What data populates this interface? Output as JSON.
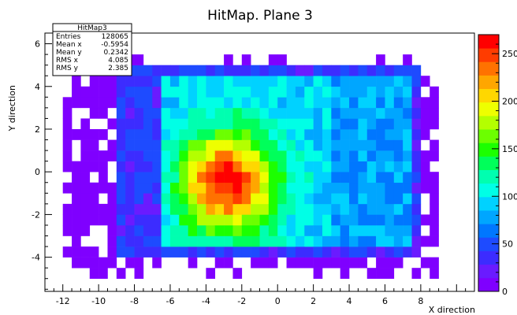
{
  "chart_data": {
    "type": "heatmap",
    "title": "HitMap. Plane 3",
    "xlabel": "X direction",
    "ylabel": "Y direction",
    "xlim": [
      -13,
      11
    ],
    "ylim": [
      -5.6,
      6.5
    ],
    "bin_width_x": 0.5,
    "bin_width_y": 0.5,
    "x_ticks": [
      "-12",
      "-10",
      "-8",
      "-6",
      "-4",
      "-2",
      "0",
      "2",
      "4",
      "6",
      "8"
    ],
    "y_ticks": [
      "-4",
      "-2",
      "0",
      "2",
      "4",
      "6"
    ],
    "z_range": [
      0,
      270
    ],
    "z_ticks": [
      "0",
      "50",
      "100",
      "150",
      "200",
      "250"
    ],
    "colormap": [
      "#7f00ff",
      "#6a1bff",
      "#3c2cff",
      "#1e4bff",
      "#0077ff",
      "#00a6ff",
      "#00d2ff",
      "#00ffe6",
      "#00ffb0",
      "#00ff5a",
      "#1cff00",
      "#6cff00",
      "#b4ff00",
      "#eeff00",
      "#ffd700",
      "#ffa600",
      "#ff7200",
      "#ff3c00",
      "#ff0000"
    ],
    "stats": {
      "name": "HitMap3",
      "rows": [
        {
          "label": "Entries",
          "value": "128065"
        },
        {
          "label": "Mean x",
          "value": "-0.5954"
        },
        {
          "label": "Mean y",
          "value": "0.2342"
        },
        {
          "label": "RMS x",
          "value": "4.085"
        },
        {
          "label": "RMS y",
          "value": "2.385"
        }
      ]
    },
    "distribution": {
      "plateau_x_range": [
        -6.5,
        3
      ],
      "plateau_y_range": [
        -3.5,
        4.5
      ],
      "peak_center": [
        -2.8,
        -0.5
      ],
      "peak_value": 270,
      "outer_x_range": [
        -12,
        9
      ],
      "outer_y_range": [
        -5,
        5.5
      ]
    }
  }
}
